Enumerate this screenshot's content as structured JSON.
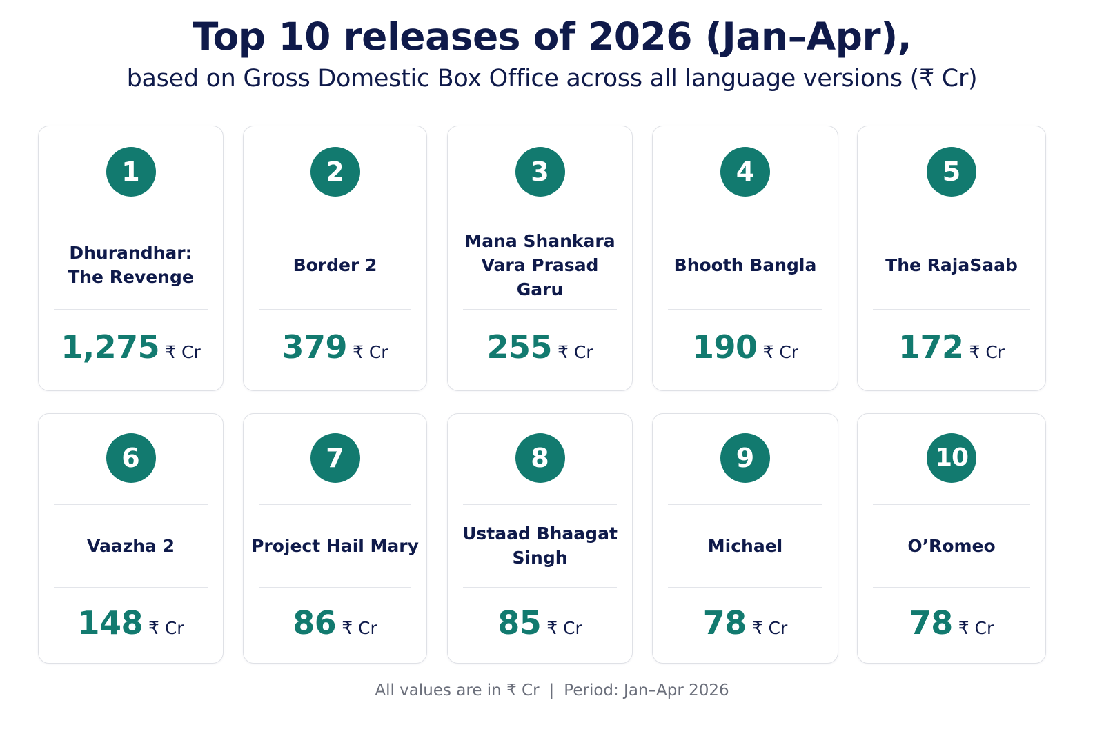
{
  "header": {
    "title": "Top 10 releases of 2026 (Jan–Apr),",
    "subtitle": "based on Gross Domestic Box Office across all language versions (₹ Cr)"
  },
  "unit_label": "₹ Cr",
  "colors": {
    "accent": "#127a6f",
    "text": "#0f1a4a",
    "muted": "#6b6f7b",
    "card_border": "#dfe1e6"
  },
  "films": [
    {
      "rank": "1",
      "name": "Dhurandhar: The Revenge",
      "gross": "1,275"
    },
    {
      "rank": "2",
      "name": "Border 2",
      "gross": "379"
    },
    {
      "rank": "3",
      "name": "Mana Shankara Vara Prasad Garu",
      "gross": "255"
    },
    {
      "rank": "4",
      "name": "Bhooth Bangla",
      "gross": "190"
    },
    {
      "rank": "5",
      "name": "The RajaSaab",
      "gross": "172"
    },
    {
      "rank": "6",
      "name": "Vaazha 2",
      "gross": "148"
    },
    {
      "rank": "7",
      "name": "Project Hail Mary",
      "gross": "86"
    },
    {
      "rank": "8",
      "name": "Ustaad Bhaagat Singh",
      "gross": "85"
    },
    {
      "rank": "9",
      "name": "Michael",
      "gross": "78"
    },
    {
      "rank": "10",
      "name": "O’Romeo",
      "gross": "78"
    }
  ],
  "footer": {
    "note": "All values are in ₹ Cr",
    "separator": "|",
    "period": "Period: Jan–Apr 2026"
  }
}
